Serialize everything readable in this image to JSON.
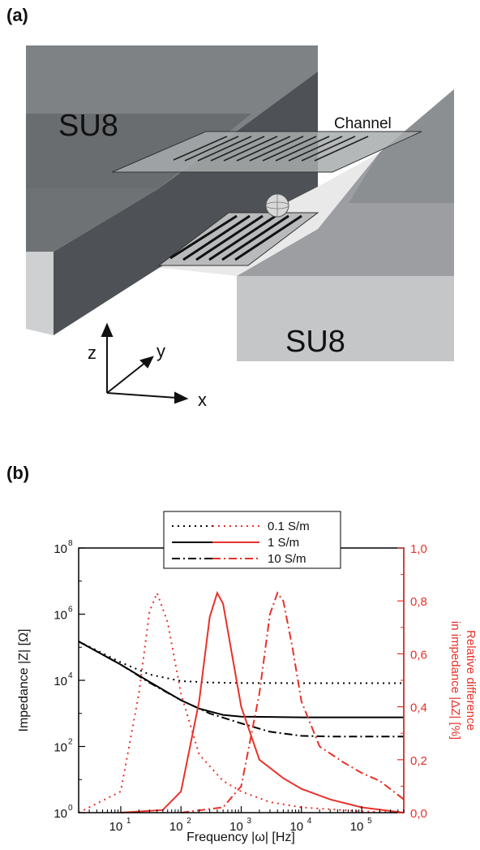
{
  "figure": {
    "panel_a_label": "(a)",
    "panel_b_label": "(b)"
  },
  "diagram": {
    "su8_top_label": "SU8",
    "su8_bottom_label": "SU8",
    "channel_label": "Channel",
    "axis_x": "x",
    "axis_y": "y",
    "axis_z": "z",
    "colors": {
      "su8_dark": "#5f6266",
      "su8_mid": "#8a8d90",
      "su8_light": "#c9cacc",
      "electrode": "#2a2a2a"
    }
  },
  "chart_data": {
    "type": "line",
    "xscale": "log",
    "xlim": [
      2,
      500000
    ],
    "ylim_left": [
      1,
      100000000
    ],
    "ylim_right": [
      0.0,
      1.0
    ],
    "x_ticks": [
      "10",
      "10",
      "10",
      "10",
      "10"
    ],
    "x_tick_exponents": [
      "1",
      "2",
      "3",
      "4",
      "5"
    ],
    "y_left_ticks": [
      "10",
      "10",
      "10",
      "10",
      "10"
    ],
    "y_left_tick_exponents": [
      "0",
      "2",
      "4",
      "6",
      "8"
    ],
    "y_right_ticks": [
      "0,0",
      "0,2",
      "0,4",
      "0,6",
      "0,8",
      "1,0"
    ],
    "xlabel": "Frequency  |ω| [Hz]",
    "ylabel_left": "Impedance  |Z| [Ω]",
    "ylabel_right_line1": "Relative difference",
    "ylabel_right_line2": "in impedance  |ΔZ| [%]",
    "legend_position": "top-center",
    "colors": {
      "impedance": "#000000",
      "relative": "#e8312a"
    },
    "series": [
      {
        "name": "0.1 S/m",
        "axis": "left",
        "style": "dotted",
        "x": [
          2,
          10,
          30,
          100,
          300,
          1000,
          10000,
          100000,
          500000
        ],
        "y": [
          150000,
          35000,
          15000,
          9500,
          8600,
          8300,
          8200,
          8200,
          8200
        ]
      },
      {
        "name": "1 S/m",
        "axis": "left",
        "style": "solid",
        "x": [
          2,
          10,
          30,
          100,
          200,
          500,
          1000,
          3000,
          10000,
          100000,
          500000
        ],
        "y": [
          150000,
          30000,
          9000,
          2500,
          1400,
          900,
          800,
          780,
          760,
          760,
          760
        ]
      },
      {
        "name": "10 S/m",
        "axis": "left",
        "style": "dashdot",
        "x": [
          2,
          10,
          30,
          100,
          300,
          1000,
          3000,
          10000,
          30000,
          100000,
          500000
        ],
        "y": [
          150000,
          30000,
          8500,
          2500,
          1000,
          500,
          280,
          210,
          200,
          200,
          200
        ]
      },
      {
        "axis": "right",
        "style": "dotted",
        "x": [
          2,
          10,
          20,
          30,
          40,
          60,
          100,
          200,
          500,
          1000,
          3000,
          10000,
          100000,
          500000
        ],
        "y": [
          0.0,
          0.08,
          0.45,
          0.76,
          0.83,
          0.72,
          0.45,
          0.22,
          0.12,
          0.08,
          0.04,
          0.02,
          0.005,
          0.0
        ]
      },
      {
        "axis": "right",
        "style": "solid",
        "x": [
          10,
          50,
          100,
          200,
          300,
          400,
          500,
          700,
          1000,
          2000,
          5000,
          10000,
          30000,
          100000,
          500000
        ],
        "y": [
          0.0,
          0.01,
          0.08,
          0.42,
          0.74,
          0.83,
          0.79,
          0.6,
          0.4,
          0.2,
          0.13,
          0.09,
          0.05,
          0.02,
          0.0
        ]
      },
      {
        "axis": "right",
        "style": "dashdot",
        "x": [
          100,
          500,
          1000,
          2000,
          3000,
          4000,
          5000,
          7000,
          10000,
          20000,
          50000,
          100000,
          200000,
          500000
        ],
        "y": [
          0.0,
          0.02,
          0.1,
          0.45,
          0.75,
          0.83,
          0.8,
          0.63,
          0.42,
          0.25,
          0.19,
          0.15,
          0.12,
          0.05
        ]
      }
    ]
  }
}
